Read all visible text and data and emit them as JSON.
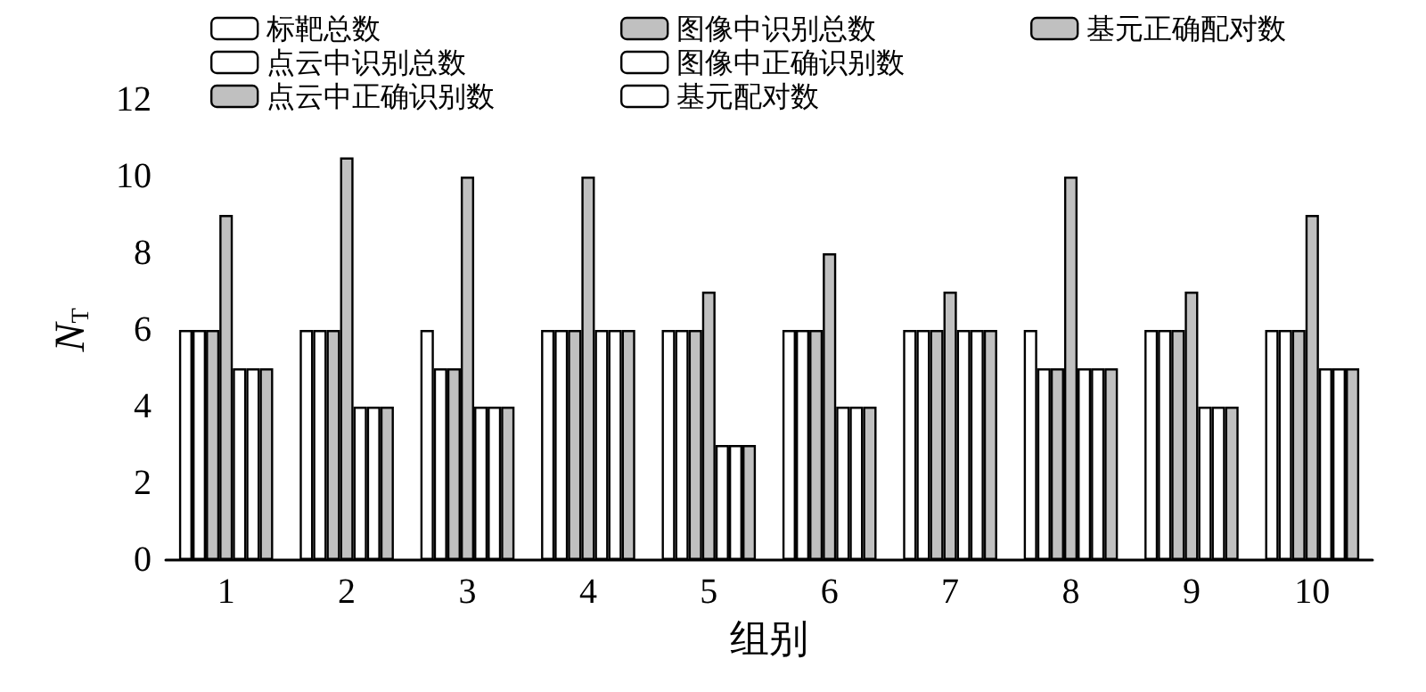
{
  "chart_data": {
    "type": "bar",
    "xlabel": "组别",
    "ylabel": "N$_{T}$",
    "categories": [
      "1",
      "2",
      "3",
      "4",
      "5",
      "6",
      "7",
      "8",
      "9",
      "10"
    ],
    "series": [
      {
        "name": "标靶总数",
        "color": "#ffffff",
        "values": [
          6,
          6,
          6,
          6,
          6,
          6,
          6,
          6,
          6,
          6
        ]
      },
      {
        "name": "点云中识别总数",
        "color": "#ffffff",
        "values": [
          6,
          6,
          5,
          6,
          6,
          6,
          6,
          5,
          6,
          6
        ]
      },
      {
        "name": "点云中正确识别数",
        "color": "#c0c0c0",
        "values": [
          6,
          6,
          5,
          6,
          6,
          6,
          6,
          5,
          6,
          6
        ]
      },
      {
        "name": "图像中识别总数",
        "color": "#c0c0c0",
        "values": [
          9,
          10.5,
          10,
          10,
          7,
          8,
          7,
          10,
          7,
          9
        ]
      },
      {
        "name": "图像中正确识别数",
        "color": "#ffffff",
        "values": [
          5,
          4,
          4,
          6,
          3,
          4,
          6,
          5,
          4,
          5
        ]
      },
      {
        "name": "基元配对数",
        "color": "#ffffff",
        "values": [
          5,
          4,
          4,
          6,
          3,
          4,
          6,
          5,
          4,
          5
        ]
      },
      {
        "name": "基元正确配对数",
        "color": "#c0c0c0",
        "values": [
          5,
          4,
          4,
          6,
          3,
          4,
          6,
          5,
          4,
          5
        ]
      }
    ],
    "ylim": [
      0,
      12
    ],
    "yticks": [
      0,
      2,
      4,
      6,
      8,
      10,
      12
    ],
    "grid": false,
    "legend": "top"
  }
}
